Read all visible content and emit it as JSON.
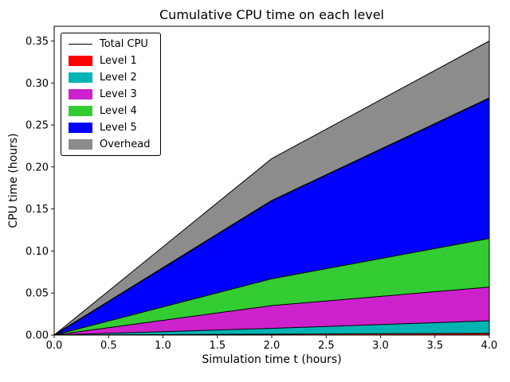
{
  "title": "Cumulative CPU time on each level",
  "xlabel": "Simulation time t (hours)",
  "ylabel": "CPU time (hours)",
  "colors": {
    "background": "#ffffff",
    "axis": "#000000",
    "total_line": "#000000"
  },
  "chart_data": {
    "type": "area",
    "subtype": "stacked",
    "title": "Cumulative CPU time on each level",
    "xlabel": "Simulation time t (hours)",
    "ylabel": "CPU time (hours)",
    "x": [
      0,
      2,
      4
    ],
    "series": [
      {
        "name": "Level 1",
        "color": "#ff0000",
        "values": [
          0,
          0.001,
          0.002
        ]
      },
      {
        "name": "Level 2",
        "color": "#00b3b3",
        "values": [
          0,
          0.007,
          0.015
        ]
      },
      {
        "name": "Level 3",
        "color": "#cc22cc",
        "values": [
          0,
          0.027,
          0.04
        ]
      },
      {
        "name": "Level 4",
        "color": "#33cc33",
        "values": [
          0,
          0.032,
          0.058
        ]
      },
      {
        "name": "Level 5",
        "color": "#0000ff",
        "values": [
          0,
          0.093,
          0.167
        ]
      },
      {
        "name": "Overhead",
        "color": "#8c8c8c",
        "values": [
          0,
          0.05,
          0.068
        ]
      }
    ],
    "cumulative_tops": {
      "level1": [
        0,
        0.001,
        0.002
      ],
      "level2": [
        0,
        0.008,
        0.017
      ],
      "level3": [
        0,
        0.035,
        0.057
      ],
      "level4": [
        0,
        0.067,
        0.115
      ],
      "total_cpu": [
        0,
        0.16,
        0.282
      ],
      "with_overhead": [
        0,
        0.21,
        0.35
      ]
    },
    "total_line_label": "Total CPU",
    "xlim": [
      0,
      4
    ],
    "ylim": [
      0,
      0.3675
    ],
    "x_tick_labels": [
      "0.0",
      "0.5",
      "1.0",
      "1.5",
      "2.0",
      "2.5",
      "3.0",
      "3.5",
      "4.0"
    ],
    "x_ticks": [
      0.0,
      0.5,
      1.0,
      1.5,
      2.0,
      2.5,
      3.0,
      3.5,
      4.0
    ],
    "y_tick_labels": [
      "0.00",
      "0.05",
      "0.10",
      "0.15",
      "0.20",
      "0.25",
      "0.30",
      "0.35"
    ],
    "y_ticks": [
      0.0,
      0.05,
      0.1,
      0.15,
      0.2,
      0.25,
      0.3,
      0.35
    ],
    "grid": false,
    "legend_position": "upper-left",
    "legend": [
      {
        "label": "Total CPU",
        "type": "line",
        "color": "#000000"
      },
      {
        "label": "Level 1",
        "type": "patch",
        "color": "#ff0000"
      },
      {
        "label": "Level 2",
        "type": "patch",
        "color": "#00b3b3"
      },
      {
        "label": "Level 3",
        "type": "patch",
        "color": "#cc22cc"
      },
      {
        "label": "Level 4",
        "type": "patch",
        "color": "#33cc33"
      },
      {
        "label": "Level 5",
        "type": "patch",
        "color": "#0000ff"
      },
      {
        "label": "Overhead",
        "type": "patch",
        "color": "#8c8c8c"
      }
    ]
  }
}
